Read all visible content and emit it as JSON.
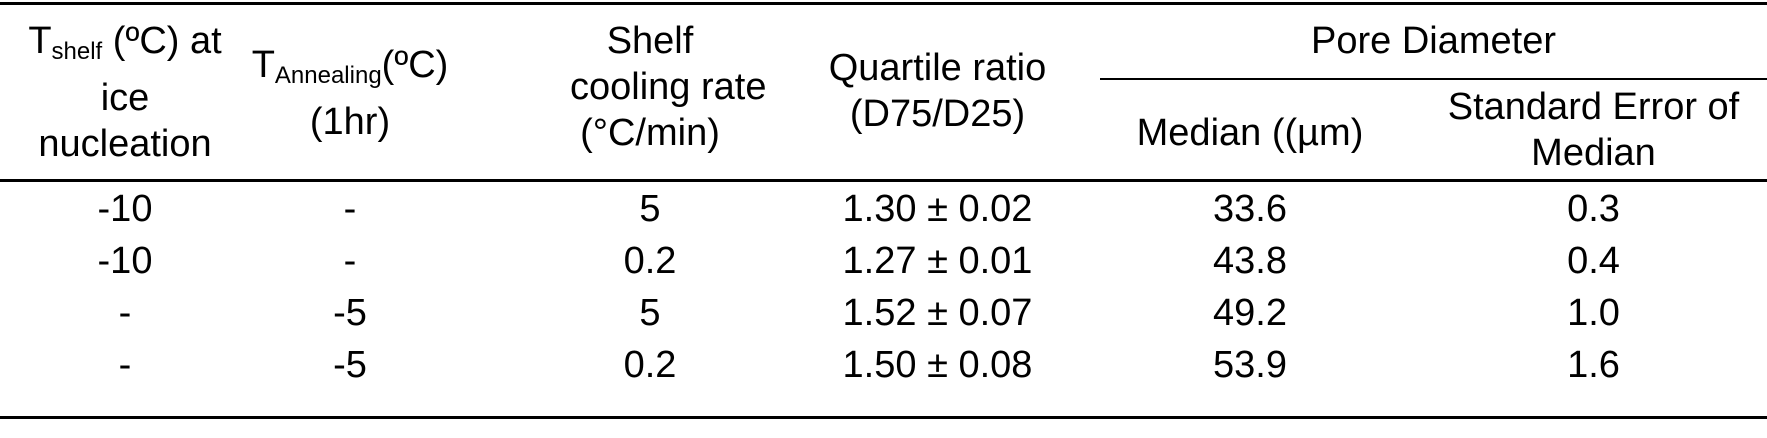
{
  "header": {
    "col1": {
      "line1_prefix": "T",
      "line1_sub": "shelf",
      "line1_suffix": " (ºC) at",
      "line2": "ice",
      "line3": "nucleation"
    },
    "col2": {
      "line1_prefix": "T",
      "line1_sub": "Annealing",
      "line1_suffix": "(ºC)",
      "line2": "(1hr)"
    },
    "col3": {
      "line1": "Shelf",
      "line2": "cooling rate",
      "line3": "(°C/min)"
    },
    "col4": {
      "line1": "Quartile ratio",
      "line2": "(D75/D25)"
    },
    "group": "Pore Diameter",
    "col5": "Median ((µm)",
    "col6": {
      "line1": "Standard Error of",
      "line2": "Median"
    }
  },
  "rows": [
    [
      "-10",
      "-",
      "5",
      "1.30 ± 0.02",
      "33.6",
      "0.3"
    ],
    [
      "-10",
      "-",
      "0.2",
      "1.27 ± 0.01",
      "43.8",
      "0.4"
    ],
    [
      "-",
      "-5",
      "5",
      "1.52 ± 0.07",
      "49.2",
      "1.0"
    ],
    [
      "-",
      "-5",
      "0.2",
      "1.50 ± 0.08",
      "53.9",
      "1.6"
    ]
  ]
}
